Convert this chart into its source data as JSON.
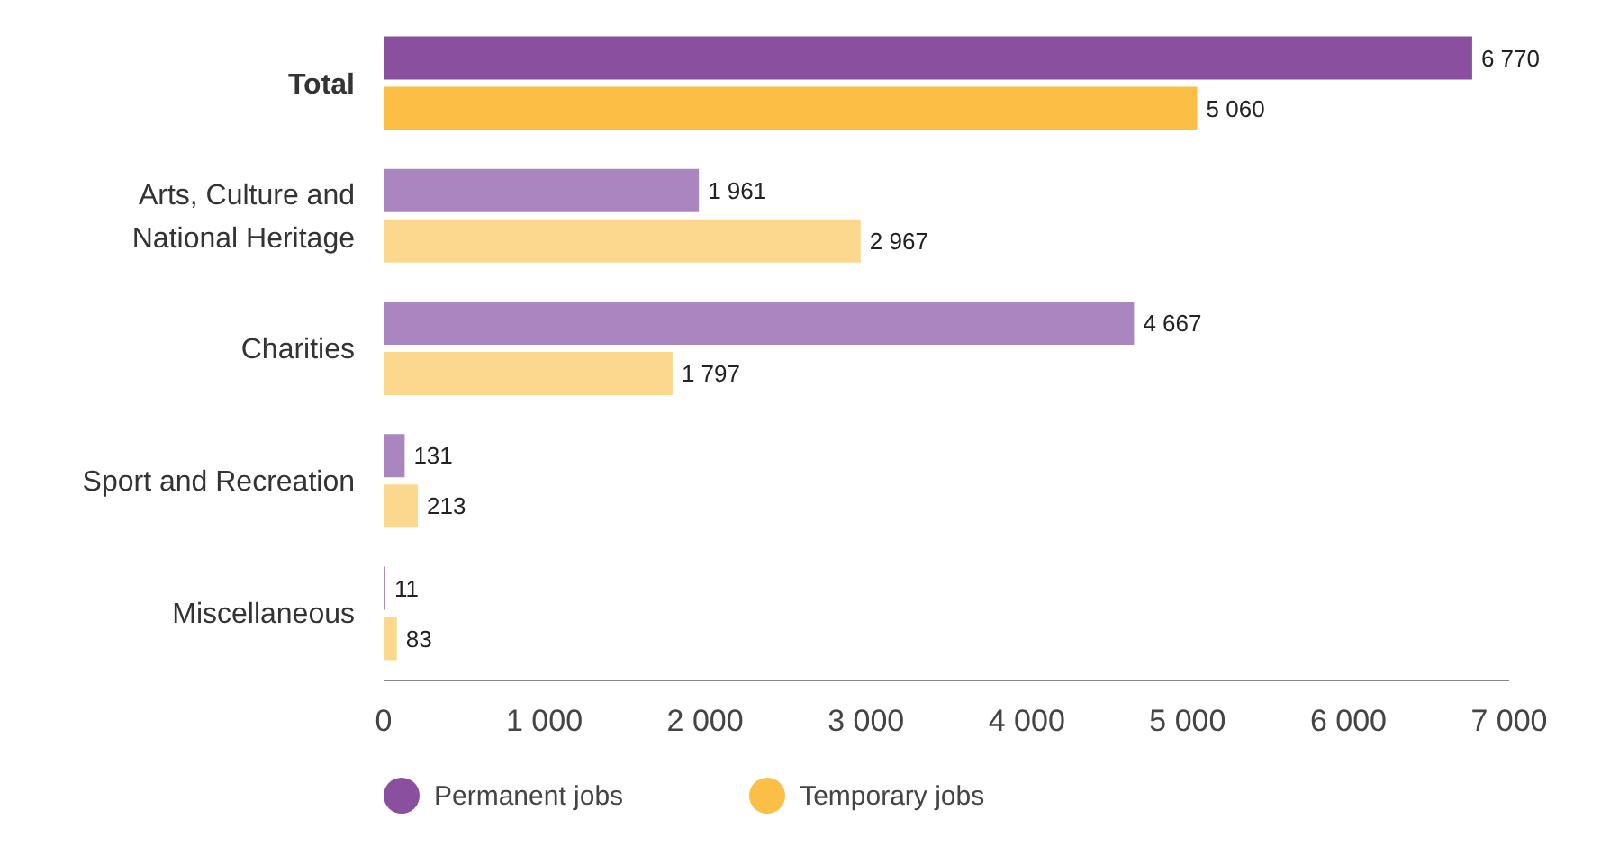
{
  "chart_data": {
    "type": "bar",
    "orientation": "horizontal",
    "categories": [
      "Total",
      "Arts, Culture and National Heritage",
      "Charities",
      "Sport and Recreation",
      "Miscellaneous"
    ],
    "series": [
      {
        "name": "Permanent jobs",
        "color": "#8b4f9f",
        "colors": [
          "#8b4f9f",
          "#a986c0",
          "#a986c0",
          "#a986c0",
          "#a986c0"
        ],
        "values": [
          6770,
          1961,
          4667,
          131,
          11
        ]
      },
      {
        "name": "Temporary jobs",
        "color": "#fbbf45",
        "colors": [
          "#fbbf45",
          "#fcd88f",
          "#fcd88f",
          "#fcd88f",
          "#fcd88f"
        ],
        "values": [
          5060,
          2967,
          1797,
          213,
          83
        ]
      }
    ],
    "xlim": [
      0,
      7000
    ],
    "xticks": [
      {
        "value": 0,
        "label": "0"
      },
      {
        "value": 1000,
        "label": "1 000"
      },
      {
        "value": 2000,
        "label": "2 000"
      },
      {
        "value": 3000,
        "label": "3 000"
      },
      {
        "value": 4000,
        "label": "4 000"
      },
      {
        "value": 5000,
        "label": "5 000"
      },
      {
        "value": 6000,
        "label": "6 000"
      },
      {
        "value": 7000,
        "label": "7 000"
      }
    ],
    "data_labels": true,
    "grid": false,
    "legend": "bottom"
  }
}
